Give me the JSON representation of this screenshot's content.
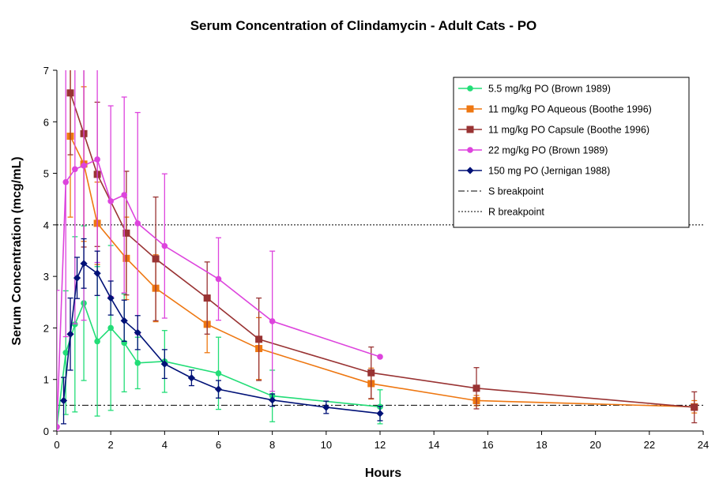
{
  "chart_data": {
    "type": "line",
    "title": "Serum Concentration  of Clindamycin  - Adult Cats - PO",
    "xlabel": "Hours",
    "ylabel": "Serum Concentration (mcg/mL)",
    "xlim": [
      0,
      24
    ],
    "ylim": [
      0,
      7
    ],
    "xticks": [
      "0",
      "2",
      "4",
      "6",
      "8",
      "10",
      "12",
      "14",
      "16",
      "18",
      "20",
      "22",
      "24"
    ],
    "yticks": [
      "0",
      "1",
      "2",
      "3",
      "4",
      "5",
      "6",
      "7"
    ],
    "legend_position": "top-right",
    "series": [
      {
        "name": "5.5 mg/kg PO (Brown 1989)",
        "color": "#22DD77",
        "marker": "circle",
        "x": [
          0,
          0.33,
          0.67,
          1,
          1.5,
          2,
          2.5,
          3,
          4,
          6,
          8,
          12
        ],
        "y": [
          0.08,
          1.52,
          2.07,
          2.48,
          1.74,
          2.0,
          1.71,
          1.32,
          1.35,
          1.12,
          0.68,
          0.47
        ],
        "err": [
          0,
          1.2,
          1.7,
          1.5,
          1.45,
          1.6,
          0.95,
          0.5,
          0.6,
          0.7,
          0.5,
          0.33
        ]
      },
      {
        "name": "11 mg/kg PO Aqueous (Boothe 1996)",
        "color": "#EE7711",
        "marker": "square",
        "x": [
          0.5,
          1,
          1.5,
          2.58,
          3.67,
          5.58,
          7.5,
          11.67,
          15.58,
          23.67
        ],
        "y": [
          5.72,
          5.18,
          4.03,
          3.35,
          2.77,
          2.07,
          1.6,
          0.92,
          0.59,
          0.47
        ],
        "err": [
          1.57,
          1.5,
          0.8,
          0.8,
          0.65,
          0.55,
          0.6,
          0.3,
          0.1,
          0.12
        ]
      },
      {
        "name": "11 mg/kg PO Capsule (Boothe 1996)",
        "color": "#993333",
        "marker": "square",
        "x": [
          0.5,
          1,
          1.5,
          2.58,
          3.67,
          5.58,
          7.5,
          11.67,
          15.58,
          23.67
        ],
        "y": [
          6.56,
          5.77,
          4.98,
          3.84,
          3.34,
          2.58,
          1.78,
          1.13,
          0.83,
          0.46
        ],
        "err": [
          1.2,
          2.2,
          1.4,
          1.2,
          1.2,
          0.7,
          0.8,
          0.5,
          0.4,
          0.3
        ]
      },
      {
        "name": "22 mg/kg PO (Brown 1989)",
        "color": "#DD44DD",
        "marker": "circle",
        "x": [
          0,
          0.33,
          0.67,
          1,
          1.5,
          2,
          2.5,
          3,
          4,
          6,
          8,
          12
        ],
        "y": [
          0.08,
          4.83,
          5.08,
          5.15,
          5.27,
          4.46,
          4.58,
          4.03,
          3.59,
          2.95,
          2.13,
          1.44
        ],
        "err": [
          2.65,
          3.0,
          3.0,
          3.0,
          2.0,
          1.85,
          1.9,
          2.15,
          1.4,
          0.8,
          1.36,
          0
        ]
      },
      {
        "name": "150 mg PO (Jernigan 1988)",
        "color": "#001177",
        "marker": "diamond",
        "x": [
          0.25,
          0.5,
          0.75,
          1,
          1.5,
          2,
          2.5,
          3,
          4,
          5,
          6,
          8,
          10,
          12
        ],
        "y": [
          0.59,
          1.88,
          2.97,
          3.25,
          3.06,
          2.58,
          2.14,
          1.91,
          1.3,
          1.03,
          0.81,
          0.6,
          0.46,
          0.34
        ],
        "err": [
          0.45,
          0.7,
          0.4,
          0.48,
          0.43,
          0.33,
          0.4,
          0.33,
          0.28,
          0.15,
          0.17,
          0.12,
          0.12,
          0.14
        ]
      }
    ],
    "reference_lines": [
      {
        "name": "S breakpoint",
        "y": 0.5,
        "style": "dash-dot"
      },
      {
        "name": "R breakpoint",
        "y": 4,
        "style": "dotted"
      }
    ]
  }
}
